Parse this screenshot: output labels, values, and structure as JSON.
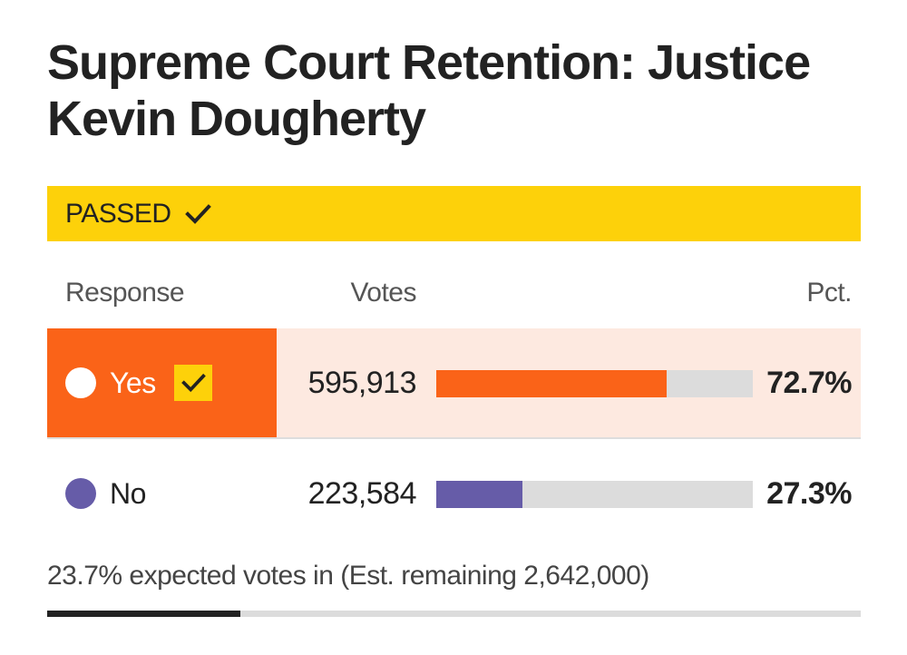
{
  "title": "Supreme Court Retention: Justice Kevin Dougherty",
  "status": {
    "label": "PASSED",
    "icon": "checkmark-icon",
    "color": "#fdd10a"
  },
  "columns": {
    "response": "Response",
    "votes": "Votes",
    "pct": "Pct."
  },
  "rows": [
    {
      "response": "Yes",
      "votes": "595,913",
      "pct": "72.7%",
      "share": 0.727,
      "winner": true,
      "color": "#fa6318",
      "dot_color": "#ffffff"
    },
    {
      "response": "No",
      "votes": "223,584",
      "pct": "27.3%",
      "share": 0.273,
      "winner": false,
      "color": "#665ca8",
      "dot_color": "#665ca8"
    }
  ],
  "footer": {
    "text": "23.7% expected votes in (Est. remaining 2,642,000)",
    "expected_in": 0.237
  }
}
